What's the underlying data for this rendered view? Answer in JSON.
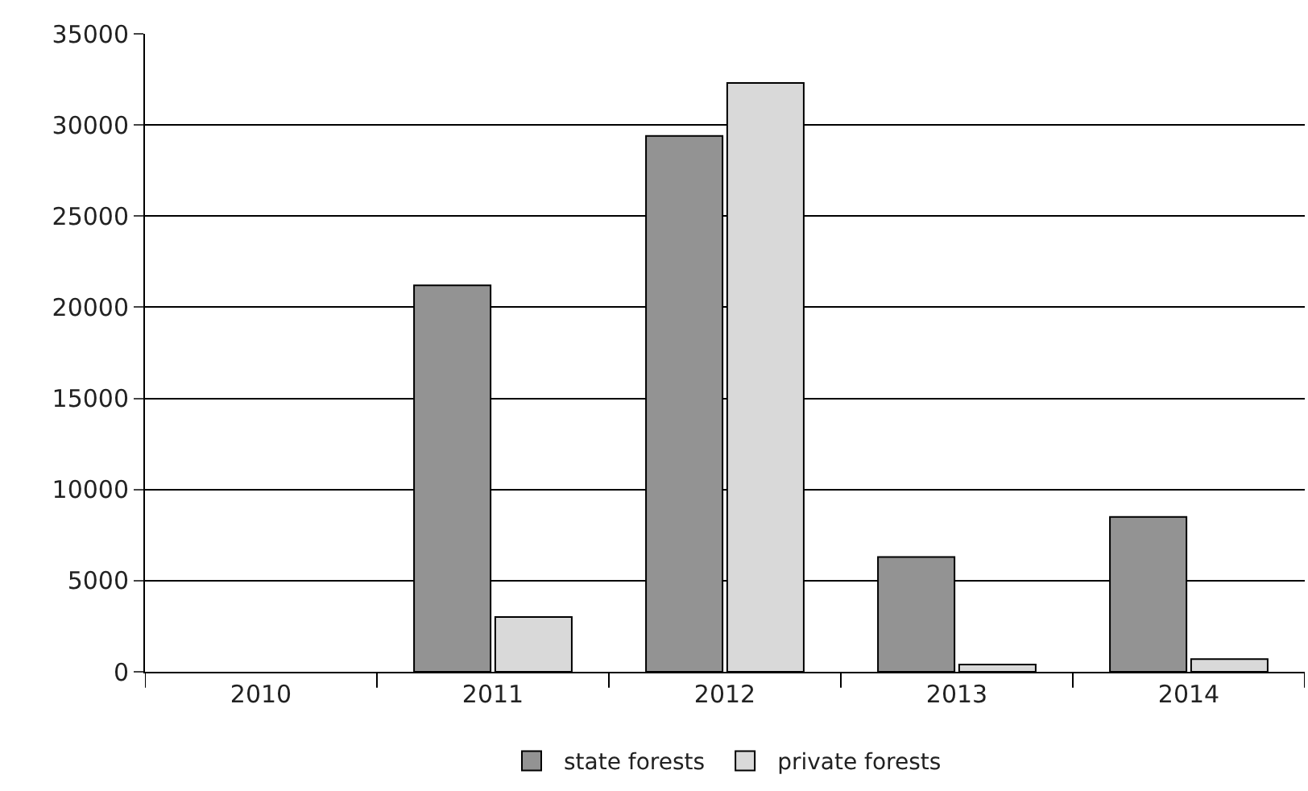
{
  "chart_data": {
    "type": "bar",
    "categories": [
      "2010",
      "2011",
      "2012",
      "2013",
      "2014"
    ],
    "series": [
      {
        "name": "state forests",
        "color": "#939393",
        "values": [
          null,
          21200,
          29400,
          6300,
          8500
        ]
      },
      {
        "name": "private forests",
        "color": "#d9d9d9",
        "values": [
          null,
          3000,
          32300,
          400,
          700
        ]
      }
    ],
    "ylim": [
      0,
      35000
    ],
    "yticks": [
      0,
      5000,
      10000,
      15000,
      20000,
      25000,
      30000,
      35000
    ],
    "grid": "y",
    "legend": "bottom"
  }
}
